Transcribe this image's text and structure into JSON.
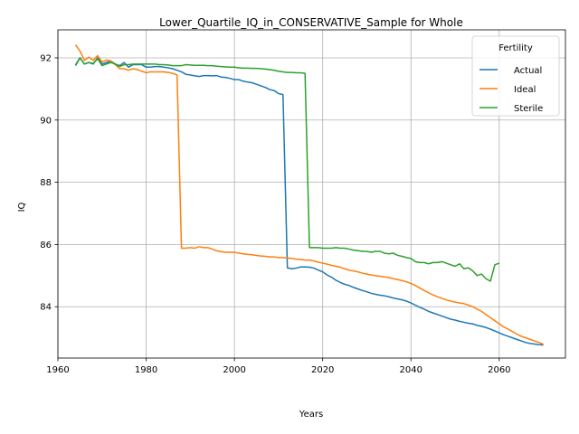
{
  "chart_data": {
    "type": "line",
    "title": "Lower_Quartile_IQ_in_CONSERVATIVE_Sample for Whole",
    "xlabel": "Years",
    "ylabel": "IQ",
    "xlim": [
      1960,
      2075
    ],
    "ylim": [
      82.35,
      92.9
    ],
    "xticks": [
      1960,
      1980,
      2000,
      2020,
      2040,
      2060
    ],
    "yticks": [
      84,
      86,
      88,
      90,
      92
    ],
    "grid": true,
    "legend": {
      "title": "Fertility",
      "placement": "top-right"
    },
    "series": [
      {
        "name": "Actual",
        "color": "#1f77b4",
        "points": [
          [
            1964,
            91.75
          ],
          [
            1965,
            92.0
          ],
          [
            1966,
            91.8
          ],
          [
            1967,
            91.85
          ],
          [
            1968,
            91.8
          ],
          [
            1969,
            92.0
          ],
          [
            1970,
            91.8
          ],
          [
            1971,
            91.85
          ],
          [
            1972,
            91.9
          ],
          [
            1973,
            91.8
          ],
          [
            1974,
            91.75
          ],
          [
            1975,
            91.85
          ],
          [
            1976,
            91.7
          ],
          [
            1977,
            91.78
          ],
          [
            1978,
            91.78
          ],
          [
            1979,
            91.78
          ],
          [
            1980,
            91.7
          ],
          [
            1981,
            91.7
          ],
          [
            1982,
            91.72
          ],
          [
            1983,
            91.72
          ],
          [
            1984,
            91.7
          ],
          [
            1985,
            91.68
          ],
          [
            1986,
            91.65
          ],
          [
            1987,
            91.6
          ],
          [
            1988,
            91.55
          ],
          [
            1989,
            91.47
          ],
          [
            1990,
            91.45
          ],
          [
            1991,
            91.42
          ],
          [
            1992,
            91.4
          ],
          [
            1993,
            91.43
          ],
          [
            1994,
            91.43
          ],
          [
            1995,
            91.42
          ],
          [
            1996,
            91.43
          ],
          [
            1997,
            91.38
          ],
          [
            1998,
            91.37
          ],
          [
            1999,
            91.34
          ],
          [
            2000,
            91.3
          ],
          [
            2001,
            91.3
          ],
          [
            2002,
            91.25
          ],
          [
            2003,
            91.22
          ],
          [
            2004,
            91.2
          ],
          [
            2005,
            91.15
          ],
          [
            2006,
            91.1
          ],
          [
            2007,
            91.05
          ],
          [
            2008,
            90.98
          ],
          [
            2009,
            90.95
          ],
          [
            2010,
            90.85
          ],
          [
            2011,
            90.82
          ],
          [
            2012,
            85.25
          ],
          [
            2013,
            85.22
          ],
          [
            2014,
            85.24
          ],
          [
            2015,
            85.28
          ],
          [
            2016,
            85.28
          ],
          [
            2017,
            85.27
          ],
          [
            2018,
            85.24
          ],
          [
            2019,
            85.18
          ],
          [
            2020,
            85.12
          ],
          [
            2021,
            85.02
          ],
          [
            2022,
            84.95
          ],
          [
            2023,
            84.85
          ],
          [
            2024,
            84.78
          ],
          [
            2025,
            84.72
          ],
          [
            2026,
            84.68
          ],
          [
            2027,
            84.62
          ],
          [
            2028,
            84.57
          ],
          [
            2029,
            84.52
          ],
          [
            2030,
            84.48
          ],
          [
            2031,
            84.43
          ],
          [
            2032,
            84.4
          ],
          [
            2033,
            84.37
          ],
          [
            2034,
            84.35
          ],
          [
            2035,
            84.32
          ],
          [
            2036,
            84.28
          ],
          [
            2037,
            84.25
          ],
          [
            2038,
            84.22
          ],
          [
            2039,
            84.18
          ],
          [
            2040,
            84.12
          ],
          [
            2041,
            84.05
          ],
          [
            2042,
            83.98
          ],
          [
            2043,
            83.92
          ],
          [
            2044,
            83.85
          ],
          [
            2045,
            83.8
          ],
          [
            2046,
            83.75
          ],
          [
            2047,
            83.7
          ],
          [
            2048,
            83.65
          ],
          [
            2049,
            83.6
          ],
          [
            2050,
            83.57
          ],
          [
            2051,
            83.53
          ],
          [
            2052,
            83.5
          ],
          [
            2053,
            83.47
          ],
          [
            2054,
            83.45
          ],
          [
            2055,
            83.4
          ],
          [
            2056,
            83.37
          ],
          [
            2057,
            83.33
          ],
          [
            2058,
            83.28
          ],
          [
            2059,
            83.22
          ],
          [
            2060,
            83.16
          ],
          [
            2061,
            83.1
          ],
          [
            2062,
            83.05
          ],
          [
            2063,
            83.0
          ],
          [
            2064,
            82.95
          ],
          [
            2065,
            82.9
          ],
          [
            2066,
            82.85
          ],
          [
            2067,
            82.82
          ],
          [
            2068,
            82.8
          ],
          [
            2069,
            82.78
          ],
          [
            2070,
            82.77
          ]
        ]
      },
      {
        "name": "Ideal",
        "color": "#ff7f0e",
        "points": [
          [
            1964,
            92.42
          ],
          [
            1965,
            92.22
          ],
          [
            1966,
            91.92
          ],
          [
            1967,
            92.02
          ],
          [
            1968,
            91.92
          ],
          [
            1969,
            92.07
          ],
          [
            1970,
            91.87
          ],
          [
            1971,
            91.93
          ],
          [
            1972,
            91.9
          ],
          [
            1973,
            91.78
          ],
          [
            1974,
            91.65
          ],
          [
            1975,
            91.65
          ],
          [
            1976,
            91.6
          ],
          [
            1977,
            91.65
          ],
          [
            1978,
            91.62
          ],
          [
            1979,
            91.57
          ],
          [
            1980,
            91.52
          ],
          [
            1981,
            91.55
          ],
          [
            1982,
            91.55
          ],
          [
            1983,
            91.55
          ],
          [
            1984,
            91.55
          ],
          [
            1985,
            91.53
          ],
          [
            1986,
            91.5
          ],
          [
            1987,
            91.45
          ],
          [
            1988,
            85.88
          ],
          [
            1989,
            85.88
          ],
          [
            1990,
            85.9
          ],
          [
            1991,
            85.88
          ],
          [
            1992,
            85.93
          ],
          [
            1993,
            85.9
          ],
          [
            1994,
            85.9
          ],
          [
            1995,
            85.85
          ],
          [
            1996,
            85.8
          ],
          [
            1997,
            85.77
          ],
          [
            1998,
            85.75
          ],
          [
            1999,
            85.75
          ],
          [
            2000,
            85.75
          ],
          [
            2001,
            85.72
          ],
          [
            2002,
            85.7
          ],
          [
            2003,
            85.68
          ],
          [
            2004,
            85.67
          ],
          [
            2005,
            85.65
          ],
          [
            2006,
            85.63
          ],
          [
            2007,
            85.62
          ],
          [
            2008,
            85.6
          ],
          [
            2009,
            85.6
          ],
          [
            2010,
            85.58
          ],
          [
            2011,
            85.58
          ],
          [
            2012,
            85.57
          ],
          [
            2013,
            85.55
          ],
          [
            2014,
            85.53
          ],
          [
            2015,
            85.52
          ],
          [
            2016,
            85.5
          ],
          [
            2017,
            85.5
          ],
          [
            2018,
            85.47
          ],
          [
            2019,
            85.43
          ],
          [
            2020,
            85.4
          ],
          [
            2021,
            85.37
          ],
          [
            2022,
            85.33
          ],
          [
            2023,
            85.3
          ],
          [
            2024,
            85.27
          ],
          [
            2025,
            85.22
          ],
          [
            2026,
            85.17
          ],
          [
            2027,
            85.15
          ],
          [
            2028,
            85.12
          ],
          [
            2029,
            85.08
          ],
          [
            2030,
            85.05
          ],
          [
            2031,
            85.02
          ],
          [
            2032,
            85.0
          ],
          [
            2033,
            84.98
          ],
          [
            2034,
            84.96
          ],
          [
            2035,
            84.94
          ],
          [
            2036,
            84.9
          ],
          [
            2037,
            84.87
          ],
          [
            2038,
            84.84
          ],
          [
            2039,
            84.8
          ],
          [
            2040,
            84.75
          ],
          [
            2041,
            84.68
          ],
          [
            2042,
            84.6
          ],
          [
            2043,
            84.52
          ],
          [
            2044,
            84.45
          ],
          [
            2045,
            84.38
          ],
          [
            2046,
            84.32
          ],
          [
            2047,
            84.27
          ],
          [
            2048,
            84.22
          ],
          [
            2049,
            84.18
          ],
          [
            2050,
            84.15
          ],
          [
            2051,
            84.12
          ],
          [
            2052,
            84.1
          ],
          [
            2053,
            84.05
          ],
          [
            2054,
            84.0
          ],
          [
            2055,
            83.92
          ],
          [
            2056,
            83.85
          ],
          [
            2057,
            83.75
          ],
          [
            2058,
            83.65
          ],
          [
            2059,
            83.55
          ],
          [
            2060,
            83.45
          ],
          [
            2061,
            83.35
          ],
          [
            2062,
            83.28
          ],
          [
            2063,
            83.2
          ],
          [
            2064,
            83.12
          ],
          [
            2065,
            83.05
          ],
          [
            2066,
            83.0
          ],
          [
            2067,
            82.95
          ],
          [
            2068,
            82.9
          ],
          [
            2069,
            82.85
          ],
          [
            2070,
            82.8
          ]
        ]
      },
      {
        "name": "Sterile",
        "color": "#2ca02c",
        "points": [
          [
            1964,
            91.78
          ],
          [
            1965,
            92.0
          ],
          [
            1966,
            91.8
          ],
          [
            1967,
            91.85
          ],
          [
            1968,
            91.82
          ],
          [
            1969,
            91.97
          ],
          [
            1970,
            91.75
          ],
          [
            1971,
            91.8
          ],
          [
            1972,
            91.85
          ],
          [
            1973,
            91.8
          ],
          [
            1974,
            91.72
          ],
          [
            1975,
            91.78
          ],
          [
            1976,
            91.78
          ],
          [
            1977,
            91.8
          ],
          [
            1978,
            91.8
          ],
          [
            1979,
            91.8
          ],
          [
            1980,
            91.8
          ],
          [
            1981,
            91.8
          ],
          [
            1982,
            91.8
          ],
          [
            1983,
            91.78
          ],
          [
            1984,
            91.78
          ],
          [
            1985,
            91.77
          ],
          [
            1986,
            91.75
          ],
          [
            1987,
            91.75
          ],
          [
            1988,
            91.75
          ],
          [
            1989,
            91.78
          ],
          [
            1990,
            91.77
          ],
          [
            1991,
            91.76
          ],
          [
            1992,
            91.76
          ],
          [
            1993,
            91.76
          ],
          [
            1994,
            91.75
          ],
          [
            1995,
            91.75
          ],
          [
            1996,
            91.73
          ],
          [
            1997,
            91.72
          ],
          [
            1998,
            91.71
          ],
          [
            1999,
            91.7
          ],
          [
            2000,
            91.7
          ],
          [
            2001,
            91.68
          ],
          [
            2002,
            91.67
          ],
          [
            2003,
            91.67
          ],
          [
            2004,
            91.66
          ],
          [
            2005,
            91.66
          ],
          [
            2006,
            91.65
          ],
          [
            2007,
            91.64
          ],
          [
            2008,
            91.62
          ],
          [
            2009,
            91.6
          ],
          [
            2010,
            91.57
          ],
          [
            2011,
            91.55
          ],
          [
            2012,
            91.53
          ],
          [
            2013,
            91.53
          ],
          [
            2014,
            91.52
          ],
          [
            2015,
            91.52
          ],
          [
            2016,
            91.5
          ],
          [
            2017,
            85.9
          ],
          [
            2018,
            85.9
          ],
          [
            2019,
            85.9
          ],
          [
            2020,
            85.88
          ],
          [
            2021,
            85.88
          ],
          [
            2022,
            85.88
          ],
          [
            2023,
            85.9
          ],
          [
            2024,
            85.88
          ],
          [
            2025,
            85.88
          ],
          [
            2026,
            85.85
          ],
          [
            2027,
            85.82
          ],
          [
            2028,
            85.8
          ],
          [
            2029,
            85.78
          ],
          [
            2030,
            85.78
          ],
          [
            2031,
            85.75
          ],
          [
            2032,
            85.78
          ],
          [
            2033,
            85.78
          ],
          [
            2034,
            85.72
          ],
          [
            2035,
            85.7
          ],
          [
            2036,
            85.72
          ],
          [
            2037,
            85.65
          ],
          [
            2038,
            85.62
          ],
          [
            2039,
            85.58
          ],
          [
            2040,
            85.55
          ],
          [
            2041,
            85.45
          ],
          [
            2042,
            85.42
          ],
          [
            2043,
            85.42
          ],
          [
            2044,
            85.38
          ],
          [
            2045,
            85.42
          ],
          [
            2046,
            85.42
          ],
          [
            2047,
            85.45
          ],
          [
            2048,
            85.4
          ],
          [
            2049,
            85.35
          ],
          [
            2050,
            85.3
          ],
          [
            2051,
            85.38
          ],
          [
            2052,
            85.22
          ],
          [
            2053,
            85.25
          ],
          [
            2054,
            85.15
          ],
          [
            2055,
            85.0
          ],
          [
            2056,
            85.05
          ],
          [
            2057,
            84.9
          ],
          [
            2058,
            84.82
          ],
          [
            2059,
            85.35
          ],
          [
            2060,
            85.4
          ]
        ]
      }
    ]
  }
}
